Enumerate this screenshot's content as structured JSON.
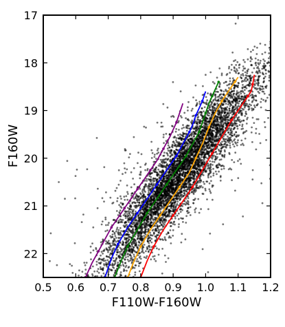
{
  "chart_data": {
    "type": "scatter",
    "xlabel": "F110W-F160W",
    "ylabel": "F160W",
    "xlim": [
      0.5,
      1.2
    ],
    "ylim": [
      22.5,
      17.0
    ],
    "y_inverted": true,
    "x_ticks": [
      0.5,
      0.6,
      0.7,
      0.8,
      0.9,
      1.0,
      1.1,
      1.2
    ],
    "x_tick_labels": [
      "0.5",
      "0.6",
      "0.7",
      "0.8",
      "0.9",
      "1.0",
      "1.1",
      "1.2"
    ],
    "y_ticks": [
      17,
      18,
      19,
      20,
      21,
      22
    ],
    "y_tick_labels": [
      "17",
      "18",
      "19",
      "20",
      "21",
      "22"
    ],
    "grid": false,
    "scatter": {
      "color": "#000000",
      "description_count": 6000,
      "ridge": [
        [
          0.7,
          22.4
        ],
        [
          0.78,
          21.5
        ],
        [
          0.85,
          21.0
        ],
        [
          0.92,
          20.4
        ],
        [
          0.98,
          19.9
        ],
        [
          1.05,
          19.3
        ],
        [
          1.12,
          18.7
        ],
        [
          1.18,
          18.2
        ]
      ],
      "core_center": [
        0.93,
        20.3
      ]
    },
    "series": [
      {
        "color": "#800080",
        "x": [
          0.63,
          0.65,
          0.67,
          0.69,
          0.71,
          0.73,
          0.75,
          0.77,
          0.79,
          0.81,
          0.83,
          0.85,
          0.87,
          0.89,
          0.91,
          0.93
        ],
        "y": [
          22.5,
          22.2,
          21.95,
          21.7,
          21.45,
          21.25,
          21.05,
          20.85,
          20.65,
          20.45,
          20.25,
          20.05,
          19.8,
          19.55,
          19.25,
          18.85
        ]
      },
      {
        "color": "#0000ff",
        "x": [
          0.69,
          0.71,
          0.73,
          0.76,
          0.79,
          0.82,
          0.85,
          0.88,
          0.91,
          0.93,
          0.95,
          0.96,
          0.97,
          0.98,
          0.99,
          1.0
        ],
        "y": [
          22.5,
          22.1,
          21.8,
          21.45,
          21.15,
          20.85,
          20.55,
          20.25,
          19.95,
          19.7,
          19.45,
          19.3,
          19.1,
          18.95,
          18.8,
          18.6
        ]
      },
      {
        "color": "#008000",
        "x": [
          0.72,
          0.74,
          0.76,
          0.79,
          0.82,
          0.85,
          0.88,
          0.91,
          0.94,
          0.96,
          0.98,
          0.99,
          1.0,
          1.01,
          1.02,
          1.03,
          1.04
        ],
        "y": [
          22.5,
          22.15,
          21.85,
          21.5,
          21.15,
          20.85,
          20.55,
          20.25,
          19.95,
          19.7,
          19.45,
          19.25,
          19.05,
          18.85,
          18.7,
          18.55,
          18.4
        ]
      },
      {
        "color": "#ffa500",
        "x": [
          0.76,
          0.78,
          0.8,
          0.83,
          0.86,
          0.89,
          0.92,
          0.95,
          0.97,
          0.99,
          1.01,
          1.03,
          1.05,
          1.07,
          1.09,
          1.1
        ],
        "y": [
          22.5,
          22.15,
          21.85,
          21.5,
          21.2,
          20.9,
          20.6,
          20.3,
          20.0,
          19.7,
          19.35,
          19.05,
          18.8,
          18.6,
          18.4,
          18.3
        ]
      },
      {
        "color": "#ff0000",
        "x": [
          0.8,
          0.82,
          0.84,
          0.87,
          0.9,
          0.93,
          0.96,
          0.99,
          1.02,
          1.05,
          1.08,
          1.11,
          1.13,
          1.14,
          1.145,
          1.15
        ],
        "y": [
          22.5,
          22.15,
          21.85,
          21.5,
          21.2,
          20.9,
          20.6,
          20.25,
          19.9,
          19.55,
          19.2,
          18.9,
          18.7,
          18.6,
          18.45,
          18.25
        ]
      }
    ]
  }
}
